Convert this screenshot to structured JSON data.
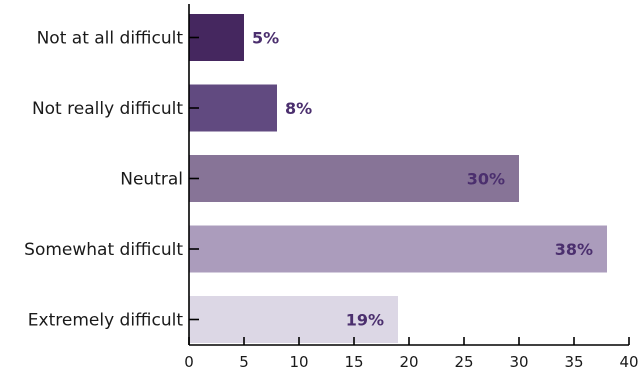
{
  "chart_data": {
    "type": "bar",
    "orientation": "horizontal",
    "categories": [
      "Not at all difficult",
      "Not really difficult",
      "Neutral",
      "Somewhat difficult",
      "Extremely difficult"
    ],
    "values": [
      5,
      8,
      30,
      38,
      19
    ],
    "value_labels": [
      "5%",
      "8%",
      "30%",
      "38%",
      "19%"
    ],
    "bar_colors": [
      "#45275f",
      "#614a80",
      "#877497",
      "#ab9cbc",
      "#dcd7e5"
    ],
    "xlim": [
      0,
      40
    ],
    "x_ticks": [
      0,
      5,
      10,
      15,
      20,
      25,
      30,
      35,
      40
    ],
    "x_tick_labels": [
      "0",
      "5",
      "10",
      "15",
      "20",
      "25",
      "30",
      "35",
      "40"
    ],
    "title": "",
    "xlabel": "",
    "ylabel": "",
    "grid": false,
    "legend": false
  }
}
